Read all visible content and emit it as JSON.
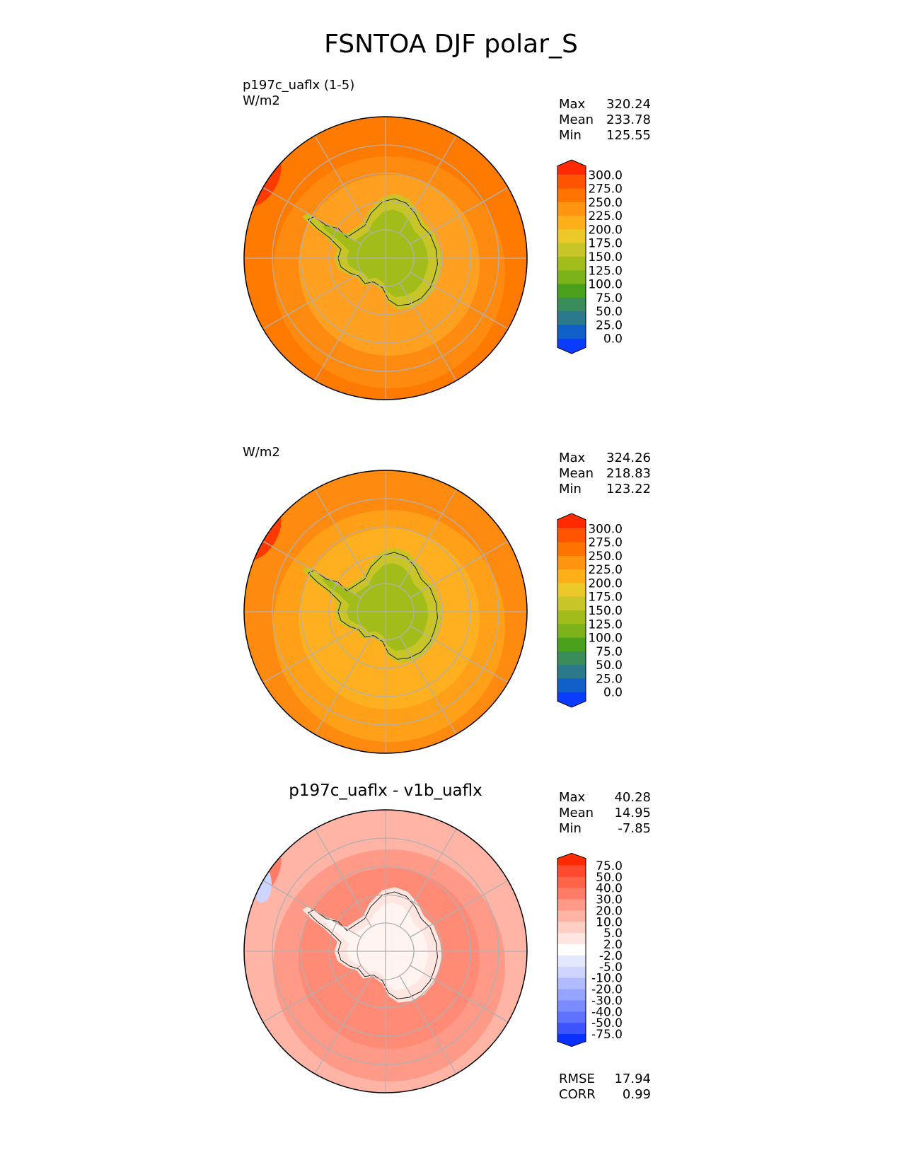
{
  "figure": {
    "title": "FSNTOA DJF polar_S"
  },
  "chart_data": [
    {
      "type": "heatmap",
      "projection": "south-polar-stereographic",
      "label_line1": "p197c_uaflx (1-5)",
      "label_line2": "W/m2",
      "title": "",
      "stats": {
        "max_label": "Max",
        "max": "320.24",
        "mean_label": "Mean",
        "mean": "233.78",
        "min_label": "Min",
        "min": "125.55"
      },
      "colorbar": {
        "levels": [
          "300.0",
          "275.0",
          "250.0",
          "225.0",
          "200.0",
          "175.0",
          "150.0",
          "125.0",
          "100.0",
          "75.0",
          "50.0",
          "25.0",
          "0.0"
        ],
        "colors": [
          "#ff2a00",
          "#ff5500",
          "#ff7400",
          "#ff9410",
          "#ffb018",
          "#eac928",
          "#c8c528",
          "#a2bd1a",
          "#7cb21a",
          "#4aa21c",
          "#3a8c5a",
          "#2a7a8c",
          "#1060c8",
          "#0a3cff"
        ]
      },
      "colors": {
        "ocean_north": "#ff7a00",
        "ocean_mid": "#ff8a10",
        "ocean_south": "#ffa020",
        "land_edge": "#c8c528",
        "land": "#a2bd1a",
        "hot_spot": "#ff3a00"
      }
    },
    {
      "type": "heatmap",
      "projection": "south-polar-stereographic",
      "label_line1": "",
      "label_line2": "W/m2",
      "title": "",
      "stats": {
        "max_label": "Max",
        "max": "324.26",
        "mean_label": "Mean",
        "mean": "218.83",
        "min_label": "Min",
        "min": "123.22"
      },
      "colorbar": {
        "levels": [
          "300.0",
          "275.0",
          "250.0",
          "225.0",
          "200.0",
          "175.0",
          "150.0",
          "125.0",
          "100.0",
          "75.0",
          "50.0",
          "25.0",
          "0.0"
        ],
        "colors": [
          "#ff2a00",
          "#ff5500",
          "#ff7400",
          "#ff9410",
          "#ffb018",
          "#eac928",
          "#c8c528",
          "#a2bd1a",
          "#7cb21a",
          "#4aa21c",
          "#3a8c5a",
          "#2a7a8c",
          "#1060c8",
          "#0a3cff"
        ]
      },
      "colors": {
        "ocean_north": "#ff8a10",
        "ocean_mid": "#ffa018",
        "ocean_south": "#ffb020",
        "land_edge": "#c8c528",
        "land": "#a2bd1a",
        "hot_spot": "#ff3a00"
      }
    },
    {
      "type": "heatmap",
      "projection": "south-polar-stereographic",
      "label_line1": "",
      "label_line2": "",
      "title": "p197c_uaflx - v1b_uaflx",
      "stats": {
        "max_label": "Max",
        "max": "40.28",
        "mean_label": "Mean",
        "mean": "14.95",
        "min_label": "Min",
        "min": "-7.85"
      },
      "extra_stats": {
        "rmse_label": "RMSE",
        "rmse": "17.94",
        "corr_label": "CORR",
        "corr": "0.99"
      },
      "colorbar": {
        "levels": [
          "75.0",
          "50.0",
          "40.0",
          "30.0",
          "20.0",
          "10.0",
          "5.0",
          "2.0",
          "-2.0",
          "-5.0",
          "-10.0",
          "-20.0",
          "-30.0",
          "-40.0",
          "-50.0",
          "-75.0"
        ],
        "colors": [
          "#ff2a00",
          "#ff4a30",
          "#ff6448",
          "#ff7c66",
          "#ff9a88",
          "#ffb4a6",
          "#ffcec4",
          "#ffe6e0",
          "#ffffff",
          "#e4e8ff",
          "#ccd4ff",
          "#b0bcff",
          "#94a4ff",
          "#7a8cff",
          "#5e72ff",
          "#3c54ff",
          "#0a30ff"
        ]
      },
      "colors": {
        "ocean_north": "#ffb4a6",
        "ocean_mid": "#ff9a88",
        "ocean_south": "#ff8a76",
        "land_edge": "#ffe6e0",
        "land": "#fff4f0",
        "hot_spot": "#ff7c66",
        "cold_spot": "#ccd4ff"
      }
    }
  ]
}
